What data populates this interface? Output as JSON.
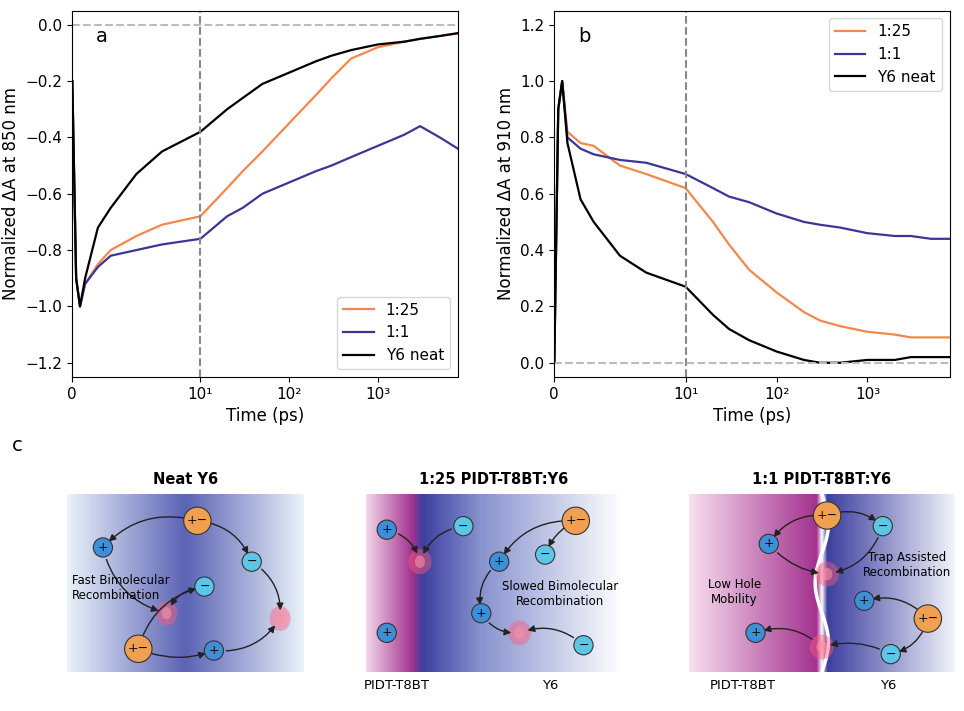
{
  "chart_data": [
    {
      "type": "line",
      "panel_label": "a",
      "xlabel": "Time (ps)",
      "ylabel": "Normalized ΔA at 850 nm",
      "x": [
        0,
        0.3,
        0.6,
        1,
        2,
        3,
        5,
        7,
        10,
        20,
        30,
        50,
        100,
        200,
        300,
        500,
        1000,
        2000,
        3000,
        5000,
        8000
      ],
      "series": [
        {
          "name": "1:25",
          "color": "#f4874b",
          "values": [
            -0.2,
            -0.9,
            -1.0,
            -0.92,
            -0.85,
            -0.8,
            -0.75,
            -0.71,
            -0.68,
            -0.58,
            -0.52,
            -0.45,
            -0.35,
            -0.25,
            -0.19,
            -0.12,
            -0.08,
            -0.06,
            -0.05,
            -0.04,
            -0.03
          ]
        },
        {
          "name": "1:1",
          "color": "#3b3696",
          "values": [
            -0.2,
            -0.9,
            -1.0,
            -0.92,
            -0.86,
            -0.82,
            -0.8,
            -0.78,
            -0.76,
            -0.68,
            -0.65,
            -0.6,
            -0.56,
            -0.52,
            -0.5,
            -0.47,
            -0.43,
            -0.39,
            -0.36,
            -0.4,
            -0.44
          ]
        },
        {
          "name": "Y6 neat",
          "color": "#000000",
          "values": [
            -0.2,
            -0.9,
            -1.0,
            -0.9,
            -0.72,
            -0.65,
            -0.53,
            -0.45,
            -0.38,
            -0.3,
            -0.26,
            -0.21,
            -0.17,
            -0.13,
            -0.11,
            -0.09,
            -0.07,
            -0.06,
            -0.05,
            -0.04,
            -0.03
          ]
        }
      ],
      "xlim": [
        0,
        8000
      ],
      "xticks": [
        0,
        {
          "value": 10,
          "label": "10¹"
        },
        {
          "value": 100,
          "label": "10²"
        },
        {
          "value": 1000,
          "label": "10³"
        }
      ],
      "ylim": [
        -1.25,
        0.05
      ],
      "yticks": [
        {
          "value": -1.2,
          "label": "−1.2"
        },
        {
          "value": -1.0,
          "label": "−1.0"
        },
        {
          "value": -0.8,
          "label": "−0.8"
        },
        {
          "value": -0.6,
          "label": "−0.6"
        },
        {
          "value": -0.4,
          "label": "−0.4"
        },
        {
          "value": -0.2,
          "label": "−0.2"
        },
        {
          "value": 0.0,
          "label": "0.0"
        }
      ],
      "log": "x",
      "legend": "lower right",
      "reference_lines": {
        "x": 10,
        "y": 0
      }
    },
    {
      "type": "line",
      "panel_label": "b",
      "xlabel": "Time (ps)",
      "ylabel": "Normalized ΔA at 910 nm",
      "x": [
        0,
        0.3,
        0.6,
        1,
        2,
        3,
        5,
        7,
        10,
        20,
        30,
        50,
        100,
        200,
        300,
        500,
        1000,
        2000,
        3000,
        5000,
        8000
      ],
      "series": [
        {
          "name": "1:25",
          "color": "#f4874b",
          "values": [
            0.0,
            0.9,
            1.0,
            0.82,
            0.78,
            0.77,
            0.7,
            0.67,
            0.62,
            0.5,
            0.42,
            0.33,
            0.25,
            0.18,
            0.15,
            0.13,
            0.11,
            0.1,
            0.09,
            0.09,
            0.09
          ]
        },
        {
          "name": "1:1",
          "color": "#3b3696",
          "values": [
            0.0,
            0.9,
            1.0,
            0.8,
            0.76,
            0.74,
            0.72,
            0.71,
            0.67,
            0.62,
            0.59,
            0.57,
            0.53,
            0.5,
            0.49,
            0.48,
            0.46,
            0.45,
            0.45,
            0.44,
            0.44
          ]
        },
        {
          "name": "Y6 neat",
          "color": "#000000",
          "values": [
            0.0,
            0.9,
            1.0,
            0.78,
            0.58,
            0.5,
            0.38,
            0.32,
            0.27,
            0.17,
            0.12,
            0.08,
            0.04,
            0.01,
            0.0,
            0.0,
            0.01,
            0.01,
            0.02,
            0.02,
            0.02
          ]
        }
      ],
      "xlim": [
        0,
        8000
      ],
      "xticks": [
        0,
        {
          "value": 10,
          "label": "10¹"
        },
        {
          "value": 100,
          "label": "10²"
        },
        {
          "value": 1000,
          "label": "10³"
        }
      ],
      "ylim": [
        -0.05,
        1.25
      ],
      "yticks": [
        {
          "value": 0.0,
          "label": "0.0"
        },
        {
          "value": 0.2,
          "label": "0.2"
        },
        {
          "value": 0.4,
          "label": "0.4"
        },
        {
          "value": 0.6,
          "label": "0.6"
        },
        {
          "value": 0.8,
          "label": "0.8"
        },
        {
          "value": 1.0,
          "label": "1.0"
        },
        {
          "value": 1.2,
          "label": "1.2"
        }
      ],
      "log": "x",
      "legend": "upper right",
      "reference_lines": {
        "x": 10,
        "y": 0
      }
    }
  ],
  "diagram": {
    "panel_label": "c",
    "charge_symbols": {
      "hole": "+",
      "electron": "−",
      "exciton": "+−"
    },
    "panels": [
      {
        "title": "Neat Y6",
        "labels": [
          "Fast Bimolecular\nRecombination"
        ],
        "materials": []
      },
      {
        "title": "1:25 PIDT-T8BT:Y6",
        "labels": [
          "Slowed Bimolecular\nRecombination"
        ],
        "materials": [
          "PIDT-T8BT",
          "Y6"
        ]
      },
      {
        "title": "1:1 PIDT-T8BT:Y6",
        "labels": [
          "Low Hole\nMobility",
          "Trap Assisted\nRecombination"
        ],
        "materials": [
          "PIDT-T8BT",
          "Y6"
        ]
      }
    ]
  }
}
